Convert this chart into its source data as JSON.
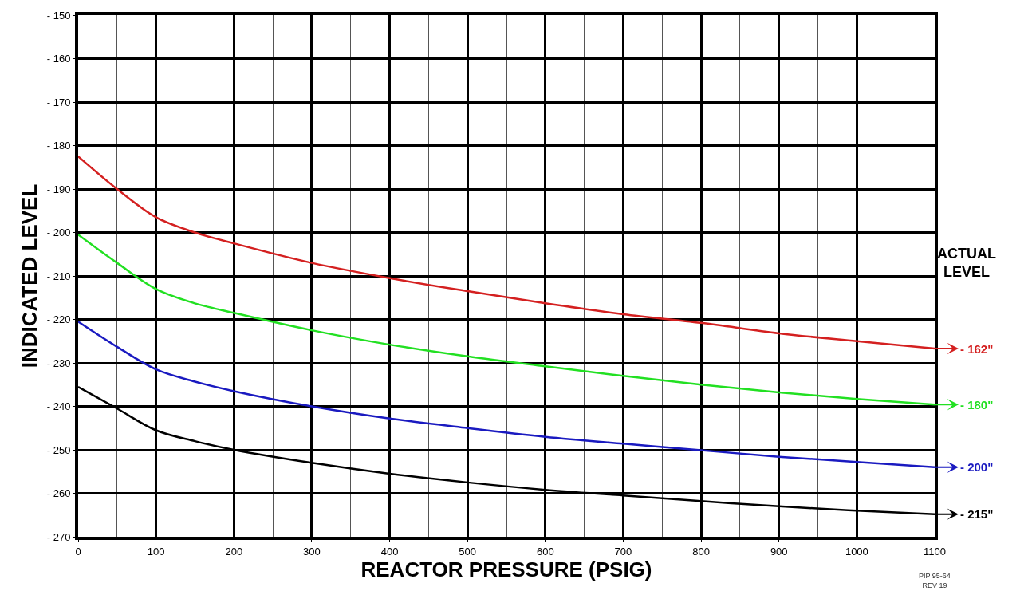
{
  "chart_data": {
    "type": "line",
    "xlabel": "REACTOR PRESSURE (PSIG)",
    "ylabel": "INDICATED LEVEL",
    "legend_title": "ACTUAL LEVEL",
    "x": [
      0,
      50,
      100,
      150,
      200,
      300,
      400,
      500,
      600,
      700,
      800,
      900,
      1000,
      1100
    ],
    "series": [
      {
        "name": "- 162\"",
        "color": "#d42020",
        "values": [
          -182.5,
          -190,
          -196.5,
          -200,
          -202.5,
          -207,
          -210.5,
          -213.5,
          -216.3,
          -218.8,
          -220.8,
          -223.2,
          -225,
          -226.7
        ]
      },
      {
        "name": "- 180\"",
        "color": "#22e022",
        "values": [
          -200.5,
          -207,
          -213,
          -216.3,
          -218.5,
          -222.5,
          -225.8,
          -228.5,
          -230.8,
          -233,
          -235,
          -236.8,
          -238.3,
          -239.6
        ]
      },
      {
        "name": "- 200\"",
        "color": "#1a1ac0",
        "values": [
          -220.5,
          -226.3,
          -231.5,
          -234.3,
          -236.5,
          -240,
          -242.8,
          -245,
          -247,
          -248.6,
          -250.1,
          -251.6,
          -252.8,
          -254
        ]
      },
      {
        "name": "- 215\"",
        "color": "#000000",
        "values": [
          -235.5,
          -240.5,
          -245.5,
          -248,
          -250,
          -253,
          -255.5,
          -257.5,
          -259.2,
          -260.5,
          -261.8,
          -263,
          -264,
          -264.8
        ]
      }
    ],
    "xlim": [
      0,
      1100
    ],
    "xticks": [
      0,
      {
        "value": 50,
        "label": null
      },
      100,
      {
        "value": 150,
        "label": null
      },
      200,
      {
        "value": 250,
        "label": null
      },
      300,
      {
        "value": 350,
        "label": null
      },
      400,
      {
        "value": 450,
        "label": null
      },
      500,
      {
        "value": 550,
        "label": null
      },
      600,
      {
        "value": 650,
        "label": null
      },
      700,
      {
        "value": 750,
        "label": null
      },
      800,
      {
        "value": 850,
        "label": null
      },
      900,
      {
        "value": 950,
        "label": null
      },
      1000,
      {
        "value": 1050,
        "label": null
      },
      1100
    ],
    "ylim": [
      -270,
      -150
    ],
    "yticks": [
      {
        "value": -270,
        "label": "- 270"
      },
      {
        "value": -260,
        "label": "- 260"
      },
      {
        "value": -250,
        "label": "- 250"
      },
      {
        "value": -240,
        "label": "- 240"
      },
      {
        "value": -230,
        "label": "- 230"
      },
      {
        "value": -220,
        "label": "- 220"
      },
      {
        "value": -210,
        "label": "- 210"
      },
      {
        "value": -200,
        "label": "- 200"
      },
      {
        "value": -190,
        "label": "- 190"
      },
      {
        "value": -180,
        "label": "- 180"
      },
      {
        "value": -170,
        "label": "- 170"
      },
      {
        "value": -160,
        "label": "- 160"
      },
      {
        "value": -150,
        "label": "- 150"
      }
    ],
    "grid": true,
    "line_style": "solid",
    "marker": "none",
    "legend": "right",
    "annotations": [
      "PIP 95-64\nREV 19"
    ]
  }
}
